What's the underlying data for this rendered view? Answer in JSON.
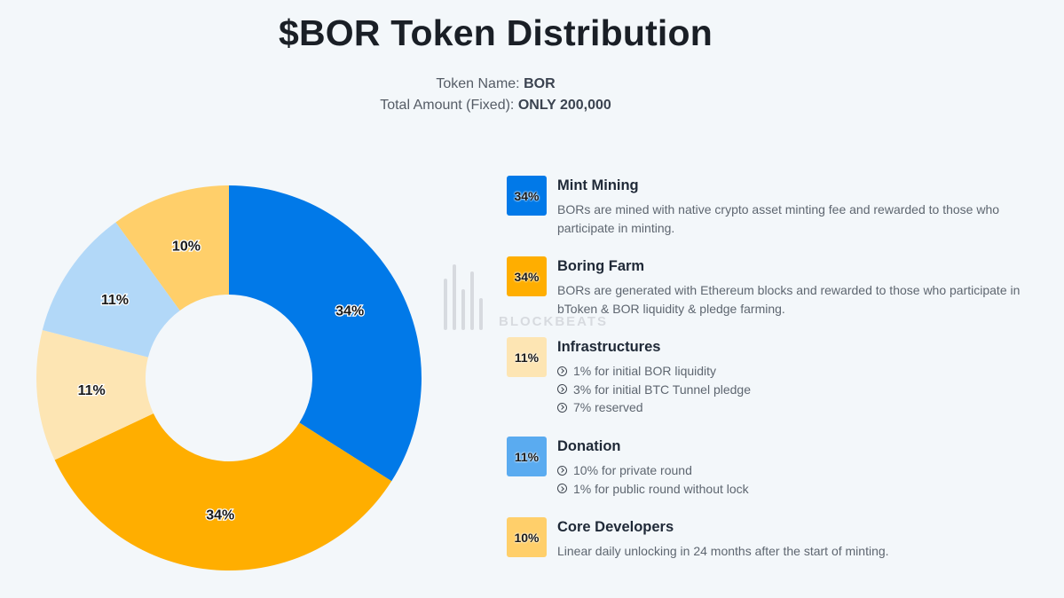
{
  "title": "$BOR Token Distribution",
  "token_name_label": "Token Name:",
  "token_name_value": "BOR",
  "total_label": "Total Amount (Fixed):",
  "total_value": "ONLY 200,000",
  "watermark": "BLOCKBEATS",
  "chart_data": {
    "type": "pie",
    "donut": true,
    "categories": [
      "Mint Mining",
      "Boring Farm",
      "Infrastructures",
      "Donation",
      "Core Developers"
    ],
    "values": [
      34,
      34,
      11,
      11,
      10
    ],
    "labels": [
      "34%",
      "34%",
      "11%",
      "11%",
      "10%"
    ],
    "colors": [
      "#0179e8",
      "#ffae00",
      "#fde5b3",
      "#b2d8f8",
      "#ffcf6a"
    ],
    "legend_position": "right"
  },
  "legend": [
    {
      "badge": "34%",
      "badge_color": "#0179e8",
      "title": "Mint Mining",
      "desc": "BORs are mined with native crypto asset minting fee and rewarded to those who participate in minting."
    },
    {
      "badge": "34%",
      "badge_color": "#ffae00",
      "title": "Boring Farm",
      "desc": "BORs are generated with Ethereum blocks and rewarded to those who participate in bToken & BOR liquidity & pledge farming."
    },
    {
      "badge": "11%",
      "badge_color": "#fde5b3",
      "title": "Infrastructures",
      "subs": [
        "1% for initial BOR liquidity",
        "3% for initial BTC Tunnel pledge",
        "7% reserved"
      ]
    },
    {
      "badge": "11%",
      "badge_color": "#5aabf0",
      "title": "Donation",
      "subs": [
        "10% for private round",
        "1% for public round without lock"
      ]
    },
    {
      "badge": "10%",
      "badge_color": "#ffcf6a",
      "title": "Core Developers",
      "desc": "Linear daily unlocking in 24 months after the start of minting."
    }
  ]
}
